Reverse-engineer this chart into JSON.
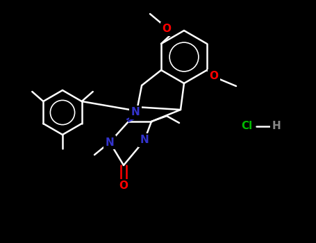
{
  "bg_color": "#000000",
  "bond_color": "#ffffff",
  "N_color": "#3333cc",
  "O_color": "#ff0000",
  "Cl_color": "#00bb00",
  "H_color": "#888888",
  "line_width": 1.8,
  "figsize": [
    4.55,
    3.5
  ],
  "dpi": 100,
  "xlim": [
    0,
    455
  ],
  "ylim": [
    0,
    350
  ]
}
